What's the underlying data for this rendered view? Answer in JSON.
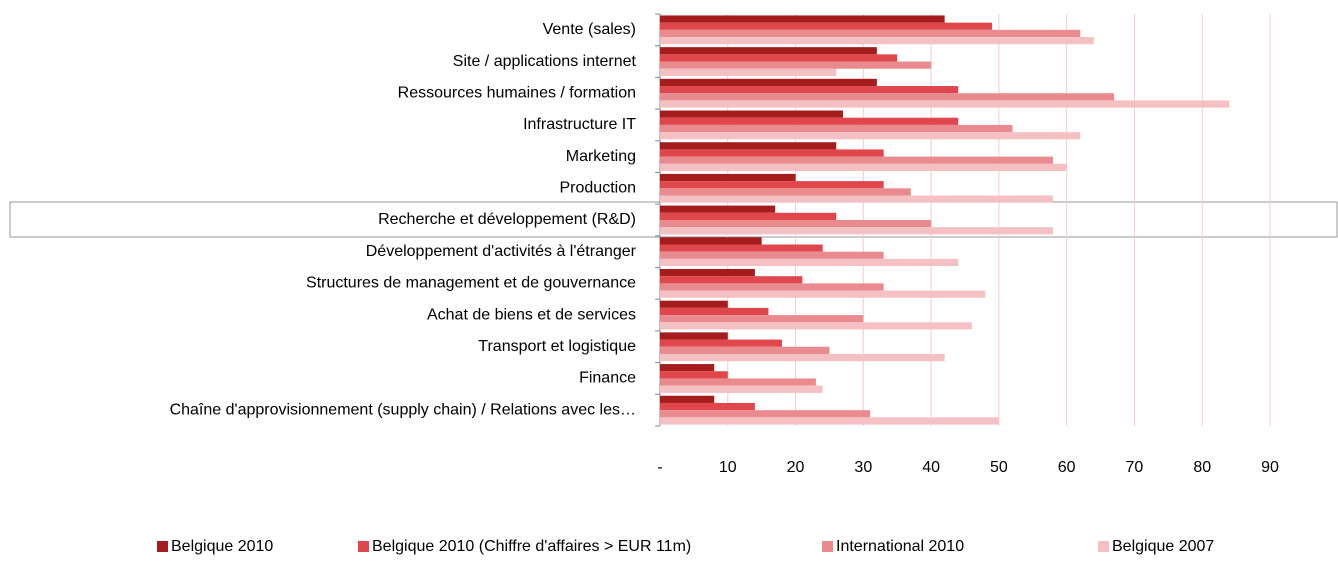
{
  "chart_data": {
    "type": "barh",
    "categories": [
      "Vente (sales)",
      "Site / applications internet",
      "Ressources humaines / formation",
      "Infrastructure IT",
      "Marketing",
      "Production",
      "Recherche et développement (R&D)",
      "Développement d'activités à l'étranger",
      "Structures de management et de gouvernance",
      "Achat de biens et de services",
      "Transport et logistique",
      "Finance",
      "Chaîne d'approvisionnement (supply chain) / Relations avec les…"
    ],
    "series": [
      {
        "name": "Belgique 2010",
        "color": "#a51c1f",
        "values": [
          42,
          32,
          32,
          27,
          26,
          20,
          17,
          15,
          14,
          10,
          10,
          8,
          8
        ]
      },
      {
        "name": "Belgique 2010 (Chiffre d'affaires > EUR 11m)",
        "color": "#e0474c",
        "values": [
          49,
          35,
          44,
          44,
          33,
          33,
          26,
          24,
          21,
          16,
          18,
          10,
          14
        ]
      },
      {
        "name": "International 2010",
        "color": "#e98b8e",
        "values": [
          62,
          40,
          67,
          52,
          58,
          37,
          40,
          33,
          33,
          30,
          25,
          23,
          31
        ]
      },
      {
        "name": "Belgique 2007",
        "color": "#f5c0c3",
        "values": [
          64,
          26,
          84,
          62,
          60,
          58,
          58,
          44,
          48,
          46,
          42,
          24,
          50
        ]
      }
    ],
    "xlim": [
      0,
      90
    ],
    "xticks": [
      {
        "value": 0,
        "label": "-"
      },
      10,
      20,
      30,
      40,
      50,
      60,
      70,
      80,
      90
    ],
    "grid": true,
    "legend": "bottom"
  }
}
